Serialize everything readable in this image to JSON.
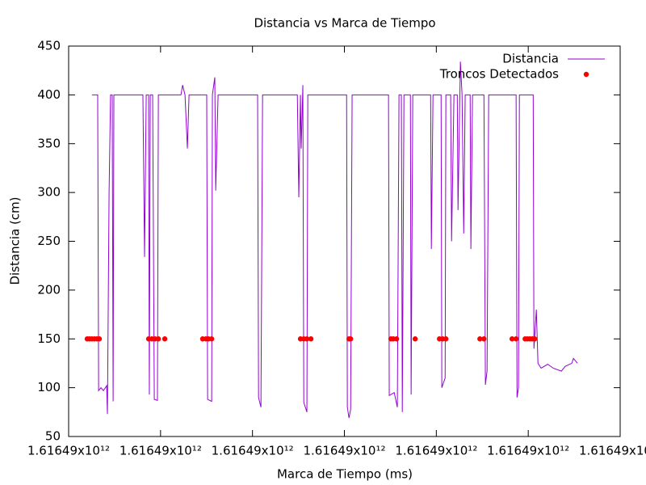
{
  "chart_data": {
    "type": "line",
    "title": "Distancia vs Marca de Tiempo",
    "xlabel": "Marca de Tiempo (ms)",
    "ylabel": "Distancia (cm)",
    "xlim": [
      1616490000000,
      1616493000000
    ],
    "xticks": [
      {
        "value": 1616490000000,
        "label": "1.61649x10¹²"
      },
      {
        "value": 1616490500000,
        "label": "1.61649x10¹²"
      },
      {
        "value": 1616491000000,
        "label": "1.61649x10¹²"
      },
      {
        "value": 1616491500000,
        "label": "1.61649x10¹²"
      },
      {
        "value": 1616492000000,
        "label": "1.61649x10¹²"
      },
      {
        "value": 1616492500000,
        "label": "1.61649x10¹²"
      },
      {
        "value": 1616493000000,
        "label": "1.61649x10¹²"
      }
    ],
    "ylim": [
      50,
      450
    ],
    "yticks": [
      50,
      100,
      150,
      200,
      250,
      300,
      350,
      400,
      450
    ],
    "grid": false,
    "legend": "top-right",
    "series": [
      {
        "name": "Distancia",
        "type": "line",
        "color": "#9400d3",
        "x": [
          1616490127000,
          1616490158000,
          1616490163000,
          1616490176000,
          1616490189000,
          1616490207000,
          1616490211000,
          1616490220000,
          1616490228000,
          1616490237000,
          1616490242000,
          1616490246000,
          1616490404000,
          1616490413000,
          1616490422000,
          1616490435000,
          1616490439000,
          1616490444000,
          1616490457000,
          1616490466000,
          1616490483000,
          1616490488000,
          1616490611000,
          1616490620000,
          1616490633000,
          1616490646000,
          1616490655000,
          1616490751000,
          1616490756000,
          1616490778000,
          1616490782000,
          1616490795000,
          1616490800000,
          1616490813000,
          1616491028000,
          1616491033000,
          1616491046000,
          1616491055000,
          1616491244000,
          1616491252000,
          1616491261000,
          1616491265000,
          1616491274000,
          1616491279000,
          1616491296000,
          1616491301000,
          1616491512000,
          1616491516000,
          1616491525000,
          1616491534000,
          1616491542000,
          1616491740000,
          1616491744000,
          1616491771000,
          1616491788000,
          1616491797000,
          1616491810000,
          1616491815000,
          1616491824000,
          1616491859000,
          1616491863000,
          1616491872000,
          1616491969000,
          1616491973000,
          1616491982000,
          1616492026000,
          1616492030000,
          1616492048000,
          1616492052000,
          1616492078000,
          1616492083000,
          1616492096000,
          1616492114000,
          1616492118000,
          1616492131000,
          1616492140000,
          1616492149000,
          1616492157000,
          1616492184000,
          1616492188000,
          1616492197000,
          1616492259000,
          1616492267000,
          1616492276000,
          1616492285000,
          1616492434000,
          1616492439000,
          1616492447000,
          1616492452000,
          1616492527000,
          1616492531000,
          1616492544000,
          1616492553000,
          1616492570000,
          1616492606000,
          1616492636000,
          1616492680000,
          1616492702000,
          1616492737000,
          1616492746000,
          1616492768000
        ],
        "values": [
          400,
          400,
          97,
          100,
          97,
          102,
          73,
          300,
          400,
          400,
          86,
          400,
          400,
          234,
          400,
          400,
          93,
          400,
          400,
          88,
          87,
          400,
          400,
          410,
          400,
          345,
          400,
          400,
          88,
          86,
          400,
          418,
          302,
          400,
          400,
          90,
          80,
          400,
          400,
          295,
          400,
          345,
          410,
          85,
          75,
          400,
          400,
          80,
          69,
          78,
          400,
          400,
          92,
          95,
          80,
          400,
          400,
          75,
          400,
          400,
          93,
          400,
          400,
          242,
          400,
          400,
          100,
          110,
          400,
          400,
          250,
          400,
          400,
          282,
          434,
          400,
          258,
          400,
          400,
          242,
          400,
          400,
          103,
          117,
          400,
          400,
          90,
          100,
          400,
          400,
          140,
          180,
          125,
          120,
          124,
          120,
          117,
          122,
          125,
          130,
          125
        ]
      },
      {
        "name": "Troncos Detectados",
        "type": "scatter",
        "color": "#ff0000",
        "x": [
          1616490101000,
          1616490114000,
          1616490127000,
          1616490141000,
          1616490154000,
          1616490167000,
          1616490435000,
          1616490453000,
          1616490470000,
          1616490488000,
          1616490523000,
          1616490729000,
          1616490747000,
          1616490760000,
          1616490778000,
          1616491261000,
          1616491279000,
          1616491296000,
          1616491318000,
          1616491525000,
          1616491534000,
          1616491753000,
          1616491766000,
          1616491784000,
          1616491885000,
          1616492017000,
          1616492034000,
          1616492052000,
          1616492237000,
          1616492259000,
          1616492412000,
          1616492434000,
          1616492483000,
          1616492496000,
          1616492509000,
          1616492522000,
          1616492535000
        ],
        "values": [
          150,
          150,
          150,
          150,
          150,
          150,
          150,
          150,
          150,
          150,
          150,
          150,
          150,
          150,
          150,
          150,
          150,
          150,
          150,
          150,
          150,
          150,
          150,
          150,
          150,
          150,
          150,
          150,
          150,
          150,
          150,
          150,
          150,
          150,
          150,
          150,
          150
        ]
      }
    ]
  }
}
